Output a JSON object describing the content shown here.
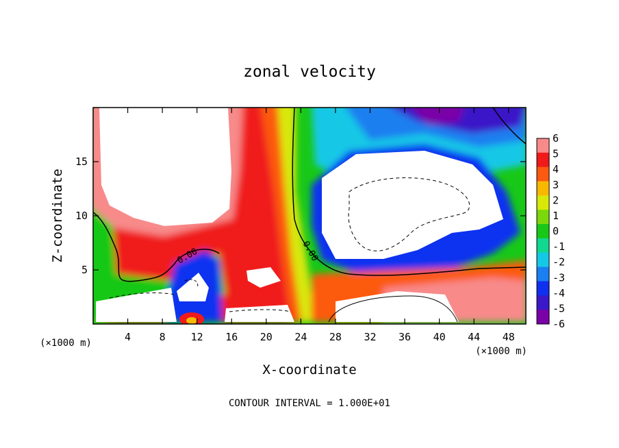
{
  "chart_data": {
    "type": "heatmap",
    "title": "zonal velocity",
    "xlabel": "X-coordinate",
    "ylabel": "Z-coordinate",
    "x_unit_note": "(×1000 m)",
    "x_ticks": [
      4,
      8,
      12,
      16,
      20,
      24,
      28,
      32,
      36,
      40,
      44,
      48
    ],
    "y_ticks": [
      5,
      10,
      15
    ],
    "xlim": [
      0,
      50
    ],
    "ylim": [
      0,
      20
    ],
    "footer": "CONTOUR INTERVAL = 1.000E+01",
    "colorbar": {
      "ticks": [
        "6",
        "5",
        "4",
        "3",
        "2",
        "1",
        "0",
        "-1",
        "-2",
        "-3",
        "-4",
        "-5",
        "-6"
      ],
      "values": [
        6,
        5,
        4,
        3,
        2,
        1,
        0,
        -1,
        -2,
        -3,
        -4,
        -5,
        -6
      ],
      "range": [
        -6,
        6
      ]
    },
    "contour_labels": [
      "0.00",
      "0.00"
    ],
    "colors": [
      "#7a00a8",
      "#3b18c8",
      "#1030f0",
      "#1a7ff0",
      "#14c8e6",
      "#10d890",
      "#18c818",
      "#7ad80c",
      "#d8e808",
      "#f8b800",
      "#fc5a10",
      "#f01a1a",
      "#f88a8a"
    ]
  }
}
